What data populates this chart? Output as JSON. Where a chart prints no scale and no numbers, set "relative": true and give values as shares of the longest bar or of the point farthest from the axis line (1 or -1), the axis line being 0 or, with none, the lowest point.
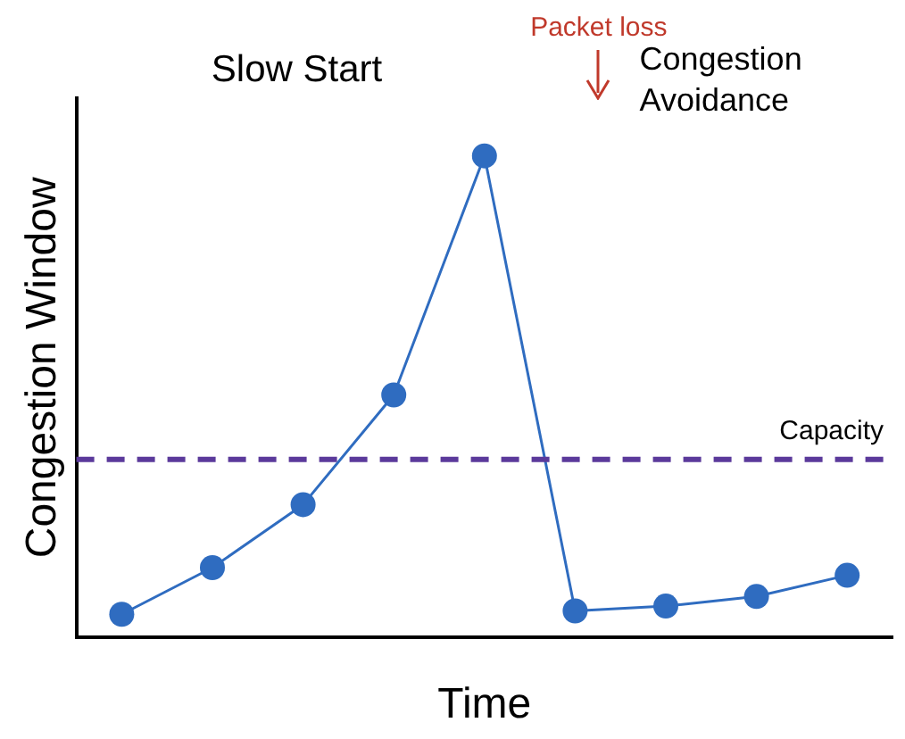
{
  "chart_data": {
    "type": "line",
    "relative": true,
    "xlabel": "Time",
    "ylabel": "Congestion Window",
    "categories": [
      null,
      null,
      null,
      null,
      null,
      null,
      null,
      null,
      null
    ],
    "series": [
      {
        "color": "#2f6cc0",
        "values": [
          0.047,
          0.144,
          0.275,
          0.503,
          1,
          0.054,
          0.064,
          0.084,
          0.128
        ]
      }
    ],
    "marker": "circle",
    "line_style": "solid",
    "grid": false,
    "legend": false,
    "ref_lines": [
      {
        "axis": "y",
        "value": 0.369,
        "label": "Capacity",
        "color": "#5b3a9b",
        "line_style": "dashed"
      }
    ],
    "annotations": [
      "Slow Start",
      "Packet loss",
      "Congestion Avoidance"
    ]
  }
}
